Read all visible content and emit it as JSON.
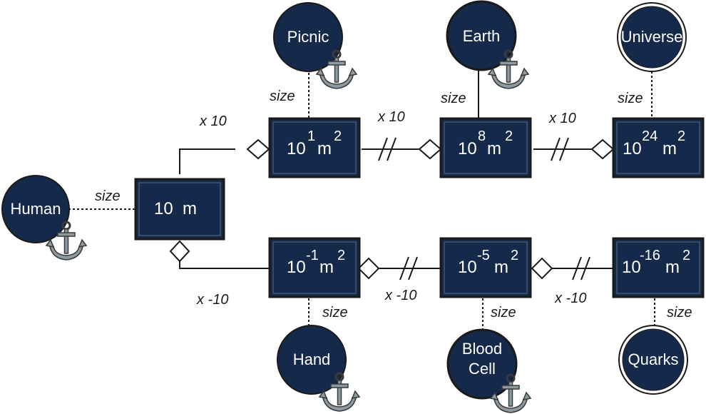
{
  "colors": {
    "node_fill": "#15294a",
    "stroke": "#1a1a1a",
    "anchor_fill": "#8e9aa2",
    "anchor_stroke": "#3a3a3a"
  },
  "labels": {
    "size": "size",
    "x_pos": "x 10",
    "x_neg": "x -10"
  },
  "center": {
    "base": "10",
    "unit": "m"
  },
  "upper": [
    {
      "base": "10",
      "exp": "1",
      "unit": "m",
      "unit_exp": "2",
      "entity": "Picnic"
    },
    {
      "base": "10",
      "exp": "8",
      "unit": "m",
      "unit_exp": "2",
      "entity": "Earth"
    },
    {
      "base": "10",
      "exp": "24",
      "unit": "m",
      "unit_exp": "2",
      "entity": "Universe"
    }
  ],
  "lower": [
    {
      "base": "10",
      "exp": "-1",
      "unit": "m",
      "unit_exp": "2",
      "entity": "Hand"
    },
    {
      "base": "10",
      "exp": "-5",
      "unit": "m",
      "unit_exp": "2",
      "entity_line1": "Blood",
      "entity_line2": "Cell"
    },
    {
      "base": "10",
      "exp": "-16",
      "unit": "m",
      "unit_exp": "2",
      "entity": "Quarks"
    }
  ],
  "human": {
    "entity": "Human"
  }
}
